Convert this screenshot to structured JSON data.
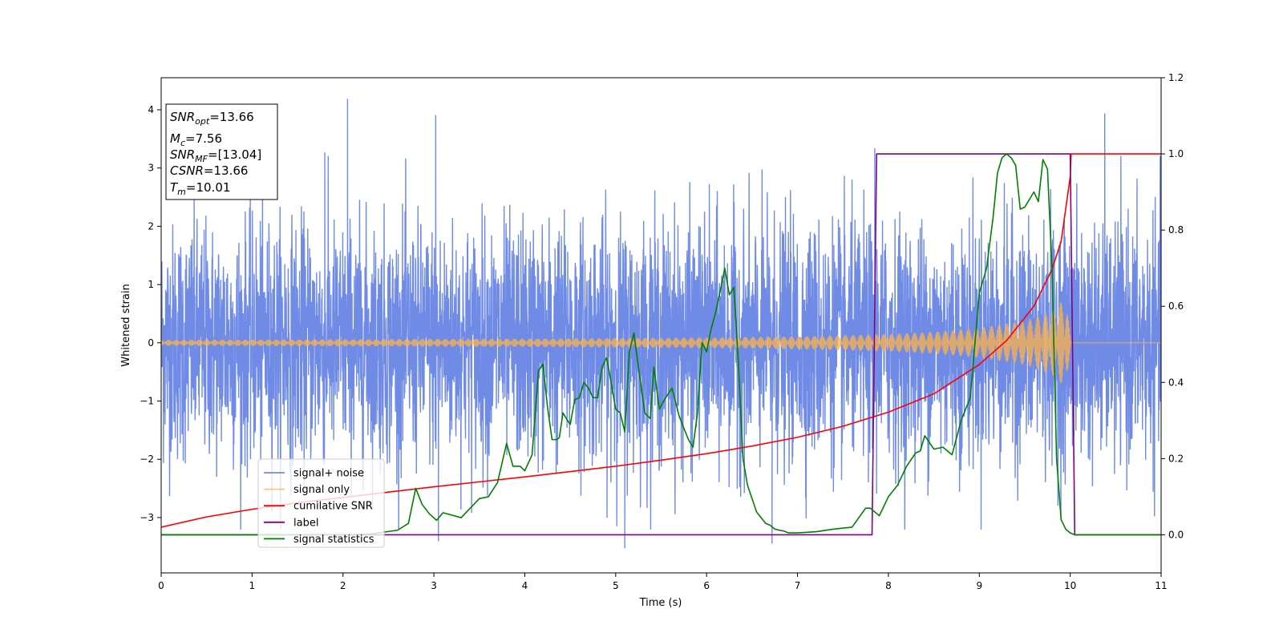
{
  "chart_data": {
    "type": "line",
    "title": "",
    "xlabel": "Time (s)",
    "ylabel": "Whitened strain",
    "ylabel_right": "",
    "xlim": [
      0,
      11
    ],
    "ylim_left": [
      -3.95,
      4.55
    ],
    "ylim_right": [
      -0.1,
      1.2
    ],
    "x_ticks": [
      0,
      1,
      2,
      3,
      4,
      5,
      6,
      7,
      8,
      9,
      10,
      11
    ],
    "y_ticks_left": [
      -3,
      -2,
      -1,
      0,
      1,
      2,
      3,
      4
    ],
    "y_ticks_right": [
      0.0,
      0.2,
      0.4,
      0.6,
      0.8,
      1.0,
      1.2
    ],
    "grid": false,
    "legend": {
      "placement": "lower-left",
      "entries": [
        {
          "label": "signal+ noise",
          "color": "#6f8be6"
        },
        {
          "label": "signal only",
          "color": "#ffb347"
        },
        {
          "label": "cumilative SNR",
          "color": "#ff0000"
        },
        {
          "label": "label",
          "color": "#800080"
        },
        {
          "label": "signal statistics",
          "color": "#008000"
        }
      ]
    },
    "annotation": {
      "lines": [
        {
          "base": "SNR",
          "sub": "opt",
          "value": "=13.66"
        },
        {
          "base": "M",
          "sub": "c",
          "value": "=7.56"
        },
        {
          "base": "SNR",
          "sub": "MF",
          "value": "=[13.04]"
        },
        {
          "base": "CSNR",
          "sub": "",
          "value": "=13.66"
        },
        {
          "base": "T",
          "sub": "m",
          "value": "=10.01"
        }
      ]
    },
    "series": [
      {
        "name": "signal+ noise",
        "axis": "left",
        "color": "#6f8be6",
        "noise_sigma": 1.0,
        "notable_peaks": [
          [
            2.05,
            4.18
          ],
          [
            3.02,
            3.9
          ],
          [
            1.8,
            3.26
          ],
          [
            7.85,
            3.33
          ],
          [
            10.38,
            3.93
          ],
          [
            5.1,
            -3.52
          ],
          [
            6.72,
            -3.44
          ],
          [
            3.05,
            -3.4
          ]
        ]
      },
      {
        "name": "signal only",
        "axis": "left",
        "color": "#ffb347",
        "envelope": {
          "x": [
            0,
            2,
            4,
            6,
            7,
            8,
            8.5,
            9,
            9.5,
            9.8,
            9.95,
            10.01,
            11
          ],
          "amp": [
            0.05,
            0.06,
            0.07,
            0.09,
            0.11,
            0.15,
            0.19,
            0.26,
            0.38,
            0.55,
            0.78,
            0.0,
            0.0
          ]
        }
      },
      {
        "name": "cumilative SNR",
        "axis": "right",
        "color": "#ff0000",
        "x": [
          0,
          0.5,
          1,
          1.5,
          2,
          2.5,
          3,
          3.5,
          4,
          4.5,
          5,
          5.5,
          6,
          6.5,
          7,
          7.5,
          8,
          8.5,
          9,
          9.3,
          9.6,
          9.8,
          9.9,
          10.0,
          10.01,
          11
        ],
        "y": [
          0.02,
          0.047,
          0.067,
          0.084,
          0.098,
          0.112,
          0.126,
          0.139,
          0.152,
          0.166,
          0.18,
          0.196,
          0.213,
          0.233,
          0.256,
          0.285,
          0.322,
          0.37,
          0.447,
          0.51,
          0.6,
          0.697,
          0.77,
          0.94,
          1.0,
          1.0
        ]
      },
      {
        "name": "label",
        "axis": "right",
        "color": "#800080",
        "x": [
          0,
          7.82,
          7.87,
          10.0,
          10.05,
          11
        ],
        "y": [
          0.0,
          0.0,
          1.0,
          1.0,
          0.0,
          0.0
        ]
      },
      {
        "name": "signal statistics",
        "axis": "right",
        "color": "#008000",
        "x": [
          0,
          1,
          2,
          2.3,
          2.6,
          2.72,
          2.8,
          2.87,
          2.95,
          3.03,
          3.1,
          3.3,
          3.5,
          3.6,
          3.7,
          3.8,
          3.87,
          3.95,
          4.0,
          4.08,
          4.15,
          4.2,
          4.25,
          4.3,
          4.35,
          4.38,
          4.42,
          4.47,
          4.5,
          4.55,
          4.6,
          4.65,
          4.7,
          4.75,
          4.8,
          4.85,
          4.9,
          4.95,
          5.0,
          5.05,
          5.1,
          5.15,
          5.2,
          5.25,
          5.32,
          5.38,
          5.42,
          5.48,
          5.55,
          5.62,
          5.7,
          5.75,
          5.8,
          5.85,
          5.9,
          5.95,
          6.0,
          6.05,
          6.1,
          6.15,
          6.2,
          6.25,
          6.3,
          6.35,
          6.4,
          6.45,
          6.5,
          6.55,
          6.6,
          6.65,
          6.7,
          6.75,
          6.8,
          6.85,
          6.9,
          6.95,
          7.0,
          7.2,
          7.4,
          7.6,
          7.75,
          7.8,
          7.9,
          8.0,
          8.1,
          8.2,
          8.3,
          8.35,
          8.4,
          8.5,
          8.6,
          8.7,
          8.8,
          8.9,
          9.0,
          9.08,
          9.15,
          9.2,
          9.25,
          9.3,
          9.35,
          9.4,
          9.45,
          9.5,
          9.55,
          9.6,
          9.65,
          9.7,
          9.75,
          9.8,
          9.85,
          9.9,
          9.95,
          10.0,
          10.05,
          10.1,
          11
        ],
        "y": [
          0.0,
          0.0,
          0.0,
          0.002,
          0.012,
          0.03,
          0.122,
          0.08,
          0.055,
          0.038,
          0.058,
          0.045,
          0.095,
          0.1,
          0.137,
          0.24,
          0.18,
          0.18,
          0.168,
          0.21,
          0.43,
          0.448,
          0.335,
          0.25,
          0.25,
          0.255,
          0.32,
          0.3,
          0.29,
          0.355,
          0.36,
          0.4,
          0.385,
          0.36,
          0.36,
          0.44,
          0.465,
          0.4,
          0.33,
          0.32,
          0.27,
          0.48,
          0.53,
          0.44,
          0.32,
          0.305,
          0.44,
          0.33,
          0.36,
          0.385,
          0.31,
          0.28,
          0.25,
          0.23,
          0.32,
          0.505,
          0.48,
          0.54,
          0.585,
          0.64,
          0.7,
          0.63,
          0.65,
          0.45,
          0.2,
          0.13,
          0.095,
          0.06,
          0.045,
          0.03,
          0.025,
          0.015,
          0.012,
          0.01,
          0.005,
          0.005,
          0.005,
          0.008,
          0.015,
          0.02,
          0.07,
          0.07,
          0.05,
          0.1,
          0.13,
          0.18,
          0.215,
          0.22,
          0.26,
          0.225,
          0.23,
          0.21,
          0.3,
          0.36,
          0.635,
          0.7,
          0.83,
          0.95,
          0.99,
          1.0,
          0.99,
          0.97,
          0.855,
          0.86,
          0.88,
          0.9,
          0.875,
          0.985,
          0.96,
          0.7,
          0.2,
          0.04,
          0.015,
          0.005,
          0.0,
          0.0,
          0.0
        ]
      }
    ]
  }
}
